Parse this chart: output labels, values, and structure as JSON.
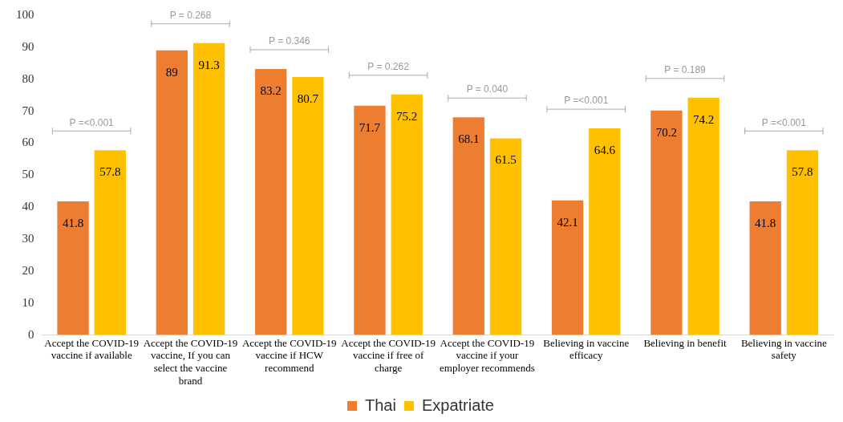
{
  "chart_data": {
    "type": "bar",
    "categories": [
      "Accept the COVID-19 vaccine if available",
      "Accept the COVID-19 vaccine, If you can select the vaccine brand",
      "Accept the COVID-19 vaccine if HCW recommend",
      "Accept the COVID-19 vaccine if free of charge",
      "Accept the COVID-19 vaccine if your employer recommends",
      "Believing in vaccine efficacy",
      "Believing in benefit",
      "Believing in vaccine safety"
    ],
    "series": [
      {
        "name": "Thai",
        "color": "#ed7d31",
        "values": [
          41.8,
          89,
          83.2,
          71.7,
          68.1,
          42.1,
          70.2,
          41.8
        ]
      },
      {
        "name": "Expatriate",
        "color": "#ffc000",
        "values": [
          57.8,
          91.3,
          80.7,
          75.2,
          61.5,
          64.6,
          74.2,
          57.8
        ]
      }
    ],
    "ylim": [
      0,
      100
    ],
    "yticks": [
      0,
      10,
      20,
      30,
      40,
      50,
      60,
      70,
      80,
      90,
      100
    ],
    "grid": false,
    "legend": "bottom",
    "data_labels": true,
    "annotations": [
      "P =<0.001",
      "P = 0.268",
      "P = 0.346",
      "P = 0.262",
      "P = 0.040",
      "P =<0.001",
      "P = 0.189",
      "P =<0.001"
    ]
  }
}
